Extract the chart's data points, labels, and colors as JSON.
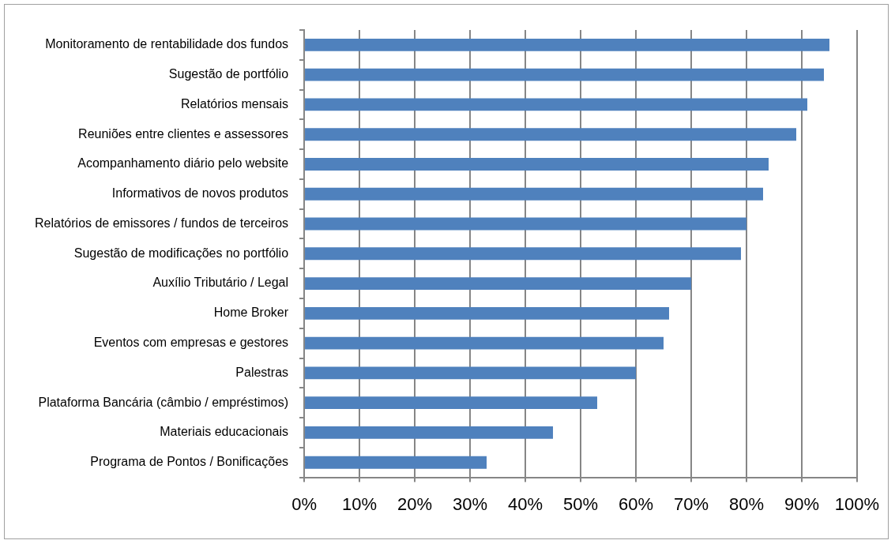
{
  "chart_data": {
    "type": "bar",
    "orientation": "horizontal",
    "categories": [
      "Monitoramento de rentabilidade dos fundos",
      "Sugestão de portfólio",
      "Relatórios mensais",
      "Reuniões entre clientes e assessores",
      "Acompanhamento diário pelo website",
      "Informativos de novos produtos",
      "Relatórios de emissores / fundos de terceiros",
      "Sugestão de modificações no portfólio",
      "Auxílio Tributário / Legal",
      "Home Broker",
      "Eventos com empresas e gestores",
      "Palestras",
      "Plataforma Bancária (câmbio / empréstimos)",
      "Materiais educacionais",
      "Programa de Pontos / Bonificações"
    ],
    "values": [
      95,
      94,
      91,
      89,
      84,
      83,
      80,
      79,
      70,
      66,
      65,
      60,
      53,
      45,
      33
    ],
    "color": "#4f81bd",
    "xlim": [
      0,
      100
    ],
    "xticks": [
      {
        "value": 0,
        "label": "0%"
      },
      {
        "value": 10,
        "label": "10%"
      },
      {
        "value": 20,
        "label": "20%"
      },
      {
        "value": 30,
        "label": "30%"
      },
      {
        "value": 40,
        "label": "40%"
      },
      {
        "value": 50,
        "label": "50%"
      },
      {
        "value": 60,
        "label": "60%"
      },
      {
        "value": 70,
        "label": "70%"
      },
      {
        "value": 80,
        "label": "80%"
      },
      {
        "value": 90,
        "label": "90%"
      },
      {
        "value": 100,
        "label": "100%"
      }
    ],
    "grid": "x",
    "legend": false
  }
}
